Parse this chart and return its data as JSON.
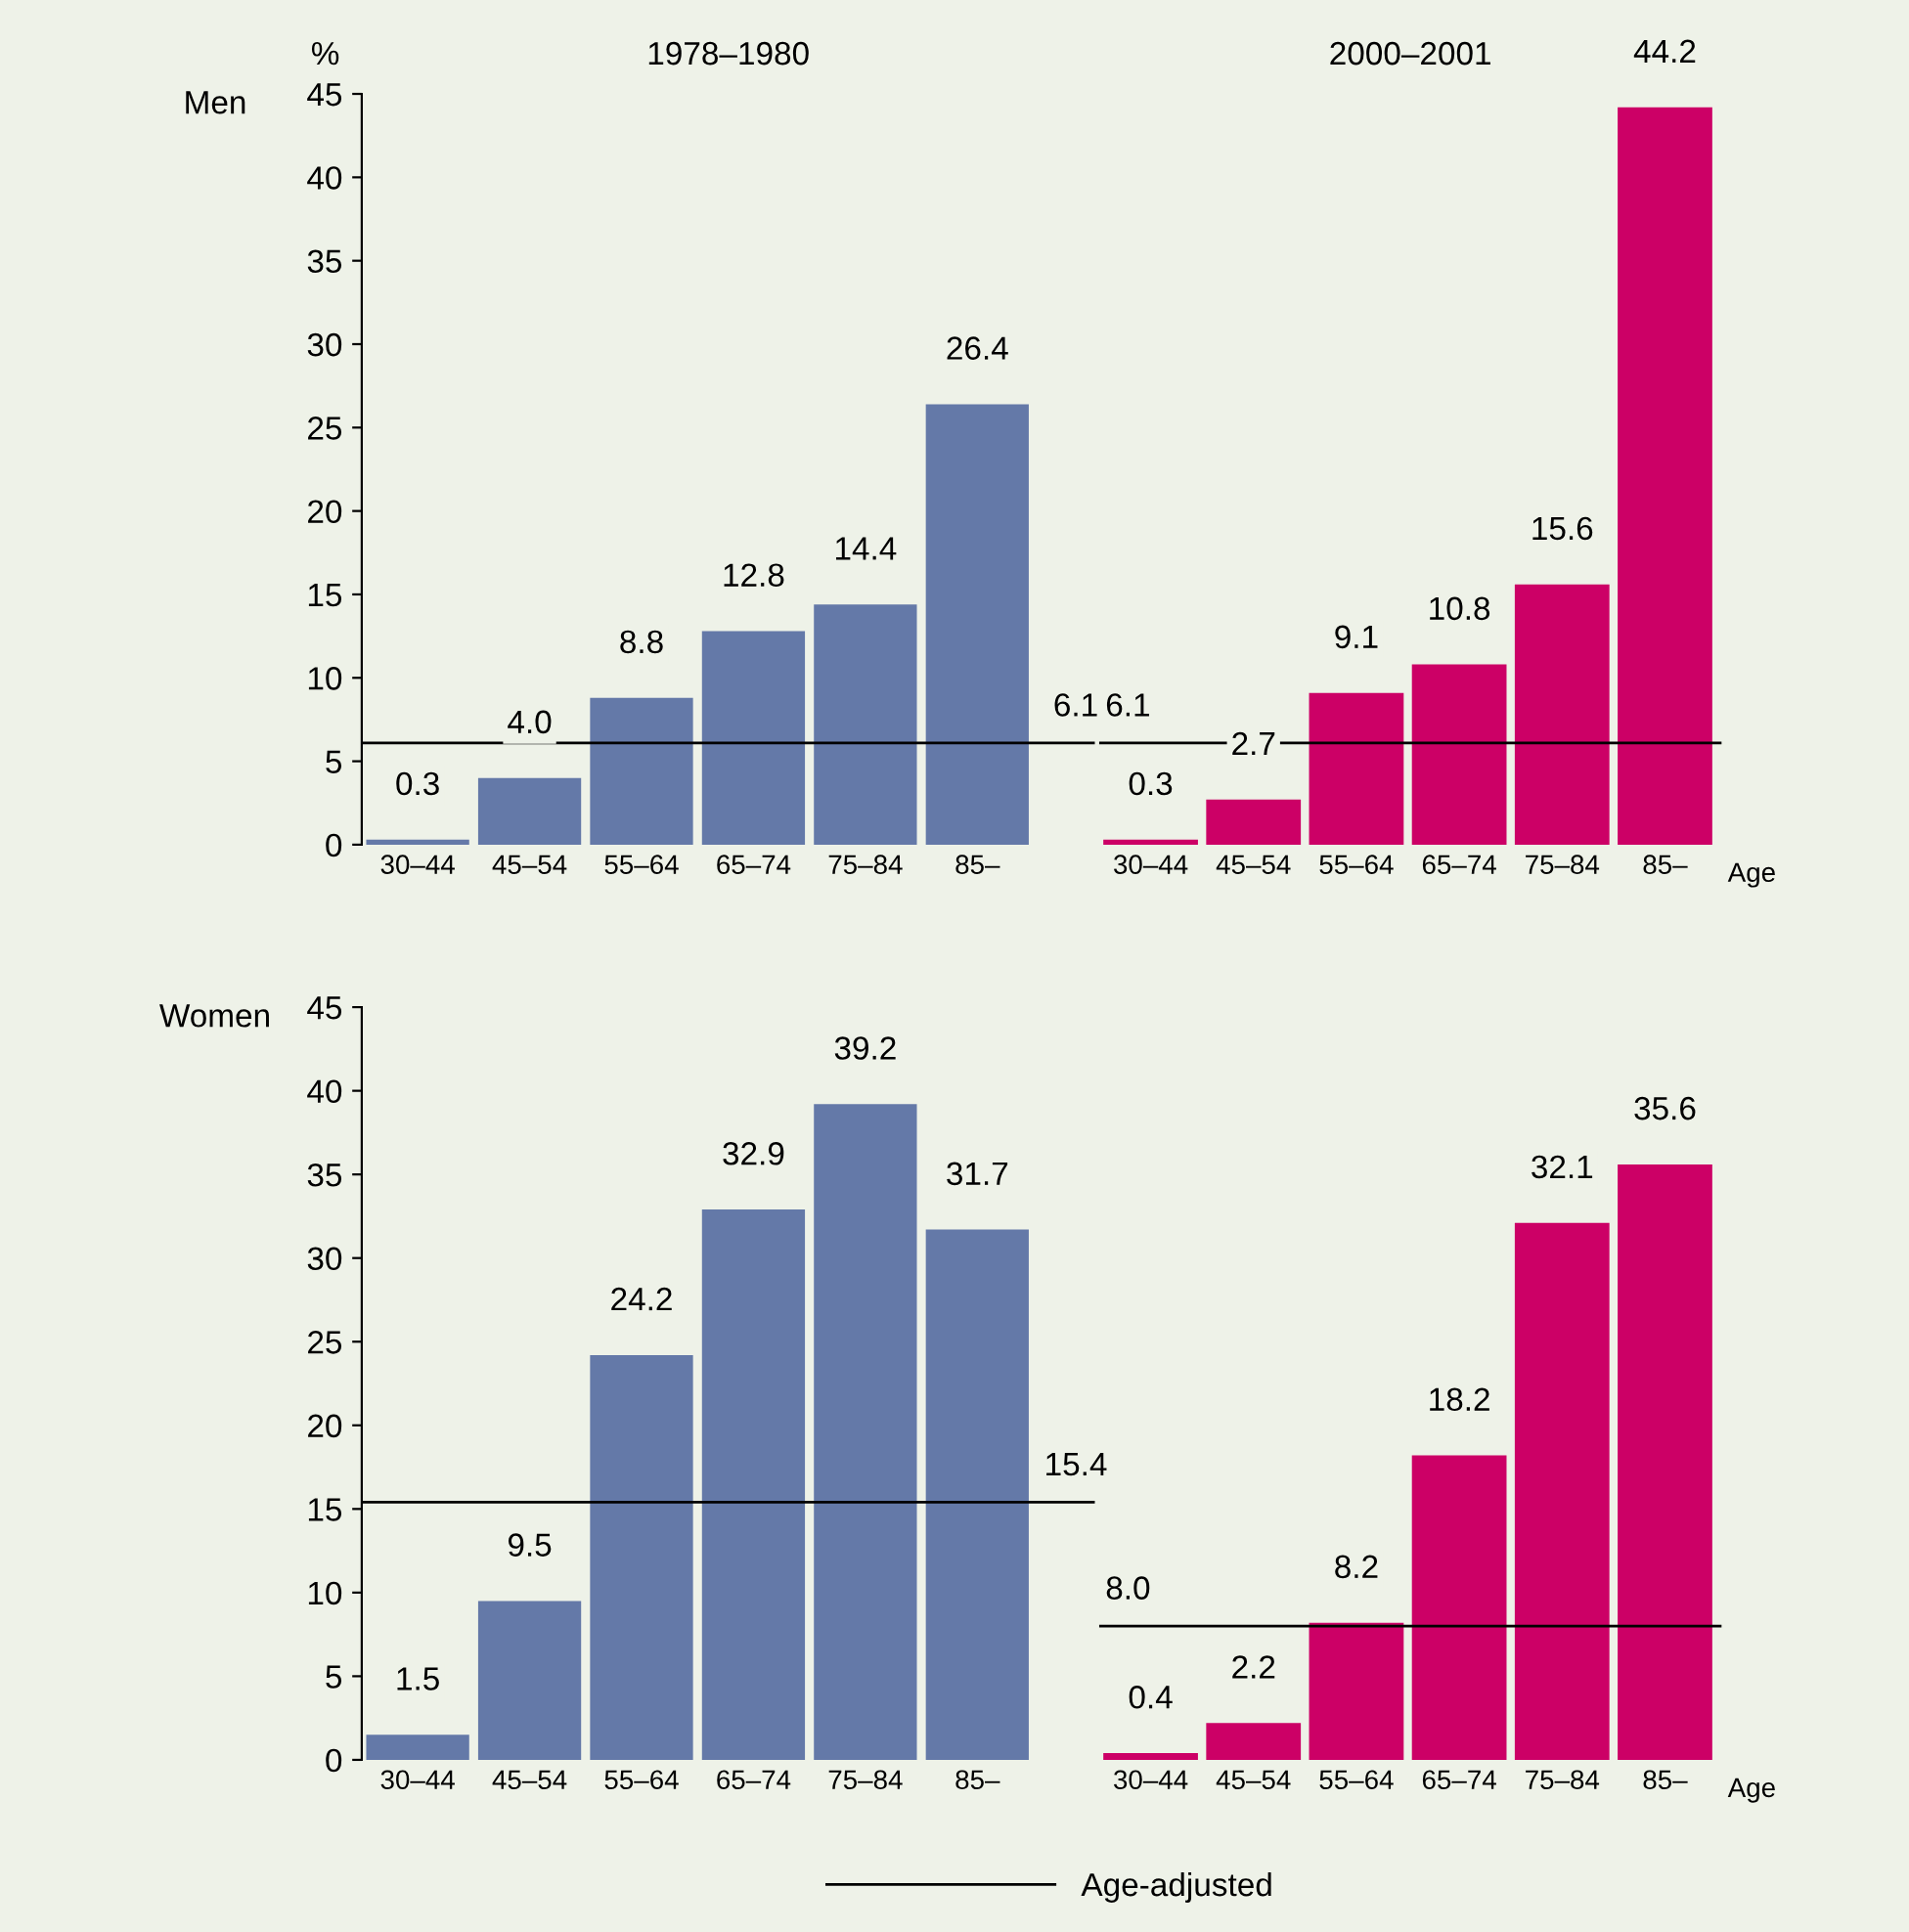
{
  "chart_data": [
    {
      "type": "bar",
      "title": "1978–1980",
      "ylabel": "%",
      "annotations": [
        "Men"
      ],
      "categories": [
        "30–44",
        "45–54",
        "55–64",
        "65–74",
        "75–84",
        "85–"
      ],
      "values": [
        0.3,
        4.0,
        8.8,
        12.8,
        14.4,
        26.4
      ],
      "value_labels": [
        "0.3",
        "4.0",
        "8.8",
        "12.8",
        "14.4",
        "26.4"
      ],
      "color": "#6479a8",
      "data_labels": true,
      "ylim": [
        0,
        45
      ],
      "yticks": [
        0,
        5,
        10,
        15,
        20,
        25,
        30,
        35,
        40,
        45
      ],
      "ref_lines": [
        {
          "axis": "y",
          "value": 6.1,
          "label": "6.1"
        }
      ]
    },
    {
      "type": "bar",
      "title": "2000–2001",
      "xlabel": "Age",
      "categories": [
        "30–44",
        "45–54",
        "55–64",
        "65–74",
        "75–84",
        "85–"
      ],
      "values": [
        0.3,
        2.7,
        9.1,
        10.8,
        15.6,
        44.2
      ],
      "color": "#cc0066",
      "data_labels": true,
      "ylim": [
        0,
        45
      ],
      "tick_labels": "x",
      "ref_lines": [
        {
          "axis": "y",
          "value": 6.1,
          "label": "6.1"
        }
      ]
    },
    {
      "type": "bar",
      "annotations": [
        "Women"
      ],
      "categories": [
        "30–44",
        "45–54",
        "55–64",
        "65–74",
        "75–84",
        "85–"
      ],
      "values": [
        1.5,
        9.5,
        24.2,
        32.9,
        39.2,
        31.7
      ],
      "color": "#6479a8",
      "data_labels": true,
      "ylim": [
        0,
        45
      ],
      "yticks": [
        0,
        5,
        10,
        15,
        20,
        25,
        30,
        35,
        40,
        45
      ],
      "ref_lines": [
        {
          "axis": "y",
          "value": 15.4,
          "label": "15.4"
        }
      ]
    },
    {
      "type": "bar",
      "xlabel": "Age",
      "legend_title": "Age-adjusted",
      "legend": "bottom",
      "categories": [
        "30–44",
        "45–54",
        "55–64",
        "65–74",
        "75–84",
        "85–"
      ],
      "values": [
        0.4,
        2.2,
        8.2,
        18.2,
        32.1,
        35.6
      ],
      "value_labels": [
        "0.4",
        "2.2",
        "8.2",
        "18.2",
        "32.1",
        "35.6"
      ],
      "color": "#cc0066",
      "data_labels": true,
      "ylim": [
        0,
        45
      ],
      "tick_labels": "x",
      "ref_lines": [
        {
          "axis": "y",
          "value": 8.0,
          "label": "8.0"
        }
      ]
    }
  ]
}
